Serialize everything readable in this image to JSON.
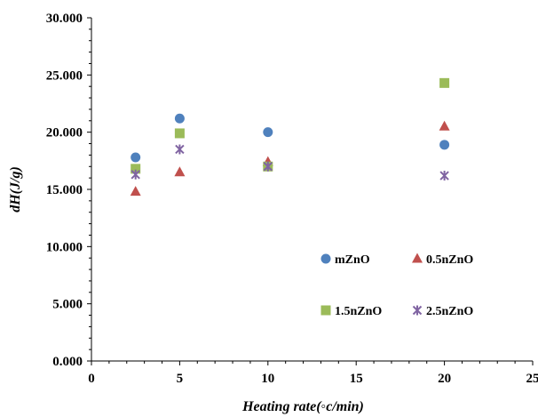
{
  "chart_data": {
    "type": "scatter",
    "xlabel": "Heating rate(◦c/min)",
    "ylabel": "dH(J/g)",
    "xlim": [
      0,
      25
    ],
    "ylim": [
      0,
      30
    ],
    "x_ticks": [
      "0",
      "5",
      "10",
      "15",
      "20",
      "25"
    ],
    "y_ticks": [
      "0.000",
      "5.000",
      "10.000",
      "15.000",
      "20.000",
      "25.000",
      "30.000"
    ],
    "grid": false,
    "legend_position": "bottom-right",
    "series": [
      {
        "name": "mZnO",
        "marker": "circle",
        "color": "#4f81bd",
        "x": [
          2.5,
          5,
          10,
          20
        ],
        "y": [
          17.8,
          21.2,
          20.0,
          18.9
        ]
      },
      {
        "name": "0.5nZnO",
        "marker": "triangle",
        "color": "#c0504d",
        "x": [
          2.5,
          5,
          10,
          20
        ],
        "y": [
          14.8,
          16.5,
          17.4,
          20.5
        ]
      },
      {
        "name": "1.5nZnO",
        "marker": "square",
        "color": "#9bbb59",
        "x": [
          2.5,
          5,
          10,
          20
        ],
        "y": [
          16.8,
          19.9,
          17.0,
          24.3
        ]
      },
      {
        "name": "2.5nZnO",
        "marker": "star",
        "color": "#8064a2",
        "x": [
          2.5,
          5,
          10,
          20
        ],
        "y": [
          16.3,
          18.5,
          17.0,
          16.2
        ]
      }
    ]
  }
}
